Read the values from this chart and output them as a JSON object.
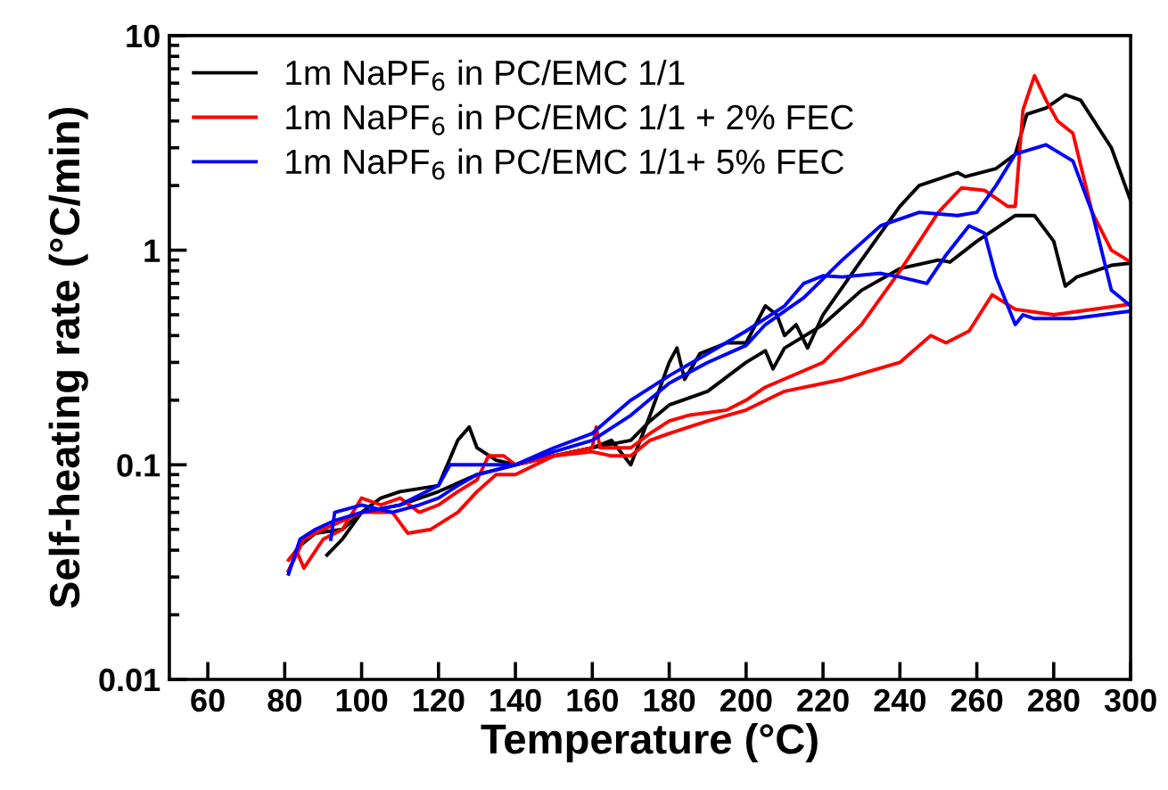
{
  "chart_data": {
    "type": "line",
    "xlabel": "Temperature (°C)",
    "ylabel": "Self-heating rate (°C/min)",
    "xlim": [
      50,
      300
    ],
    "xticks": [
      60,
      80,
      100,
      120,
      140,
      160,
      180,
      200,
      220,
      240,
      260,
      280,
      300
    ],
    "ylim": [
      0.01,
      10
    ],
    "yticks": [
      0.01,
      0.1,
      1,
      10
    ],
    "log": "y",
    "grid": false,
    "legend": "top left",
    "marker": "none",
    "line_style": "solid",
    "series": [
      {
        "name": "1m NaPF$_{6}$ in PC/EMC 1/1",
        "color": "#000000",
        "x": [
          91,
          95,
          100,
          105,
          110,
          120,
          125,
          128,
          130,
          135,
          140,
          150,
          160,
          165,
          170,
          175,
          180,
          182,
          184,
          188,
          195,
          200,
          205,
          208,
          210,
          213,
          216,
          220,
          230,
          240,
          245,
          255,
          257,
          265,
          270,
          273,
          278,
          283,
          287,
          295,
          300
        ],
        "values": [
          0.038,
          0.045,
          0.06,
          0.07,
          0.075,
          0.08,
          0.13,
          0.15,
          0.12,
          0.105,
          0.1,
          0.11,
          0.12,
          0.13,
          0.1,
          0.17,
          0.3,
          0.35,
          0.25,
          0.33,
          0.37,
          0.37,
          0.55,
          0.5,
          0.4,
          0.45,
          0.35,
          0.5,
          0.9,
          1.6,
          2.0,
          2.3,
          2.2,
          2.4,
          2.8,
          4.3,
          4.6,
          5.3,
          5.0,
          3.0,
          1.7
        ]
      },
      {
        "color": "#000000",
        "x": [
          81,
          84,
          88,
          95,
          100,
          110,
          120,
          130,
          140,
          150,
          160,
          170,
          175,
          180,
          190,
          200,
          205,
          207,
          210,
          220,
          230,
          240,
          250,
          253,
          260,
          270,
          275,
          280,
          283,
          286,
          295,
          300
        ],
        "values": [
          0.032,
          0.042,
          0.048,
          0.05,
          0.06,
          0.065,
          0.075,
          0.09,
          0.1,
          0.11,
          0.12,
          0.13,
          0.16,
          0.19,
          0.22,
          0.3,
          0.34,
          0.28,
          0.35,
          0.45,
          0.65,
          0.82,
          0.9,
          0.88,
          1.1,
          1.45,
          1.45,
          1.1,
          0.68,
          0.75,
          0.85,
          0.87
        ]
      },
      {
        "name": "1m NaPF$_{6}$ in PC/EMC 1/1 + 2% FEC",
        "color": "#ff0000",
        "x": [
          81,
          83,
          85,
          90,
          95,
          100,
          105,
          110,
          115,
          120,
          125,
          130,
          133,
          137,
          140,
          150,
          160,
          161,
          162,
          170,
          175,
          180,
          185,
          195,
          200,
          205,
          220,
          230,
          240,
          250,
          256,
          262,
          268,
          270,
          272,
          275,
          278,
          281,
          285,
          290,
          295,
          300
        ],
        "values": [
          0.036,
          0.04,
          0.033,
          0.045,
          0.05,
          0.07,
          0.065,
          0.07,
          0.06,
          0.065,
          0.075,
          0.085,
          0.11,
          0.11,
          0.1,
          0.11,
          0.12,
          0.15,
          0.12,
          0.12,
          0.14,
          0.16,
          0.17,
          0.18,
          0.2,
          0.23,
          0.3,
          0.45,
          0.8,
          1.5,
          1.95,
          1.9,
          1.6,
          1.6,
          4.5,
          6.5,
          5.0,
          4.0,
          3.5,
          1.5,
          1.0,
          0.88
        ]
      },
      {
        "color": "#ff0000",
        "x": [
          81,
          85,
          90,
          100,
          108,
          112,
          118,
          125,
          130,
          135,
          140,
          150,
          160,
          165,
          170,
          175,
          180,
          190,
          200,
          210,
          225,
          240,
          248,
          252,
          258,
          264,
          270,
          280,
          300
        ],
        "values": [
          0.032,
          0.045,
          0.05,
          0.06,
          0.06,
          0.048,
          0.05,
          0.06,
          0.075,
          0.09,
          0.09,
          0.11,
          0.115,
          0.11,
          0.11,
          0.13,
          0.14,
          0.16,
          0.18,
          0.22,
          0.25,
          0.3,
          0.4,
          0.37,
          0.42,
          0.62,
          0.53,
          0.5,
          0.56
        ]
      },
      {
        "name": "1m NaPF$_{6}$ in PC/EMC 1/1+ 5% FEC",
        "color": "#0000ff",
        "x": [
          92,
          93,
          100,
          108,
          115,
          120,
          125,
          130,
          140,
          150,
          160,
          170,
          180,
          190,
          200,
          205,
          215,
          225,
          235,
          245,
          255,
          260,
          265,
          270,
          278,
          285,
          290,
          295,
          300
        ],
        "values": [
          0.045,
          0.06,
          0.065,
          0.06,
          0.065,
          0.07,
          0.08,
          0.09,
          0.1,
          0.115,
          0.13,
          0.17,
          0.24,
          0.3,
          0.36,
          0.45,
          0.6,
          0.9,
          1.3,
          1.5,
          1.45,
          1.5,
          2.0,
          2.8,
          3.1,
          2.6,
          1.5,
          0.65,
          0.55
        ]
      },
      {
        "color": "#0000ff",
        "x": [
          81,
          84,
          88,
          93,
          100,
          110,
          120,
          123,
          130,
          140,
          150,
          160,
          170,
          180,
          190,
          200,
          210,
          215,
          220,
          225,
          235,
          240,
          247,
          252,
          258,
          262,
          265,
          270,
          272,
          275,
          285,
          300
        ],
        "values": [
          0.031,
          0.045,
          0.05,
          0.055,
          0.06,
          0.065,
          0.08,
          0.1,
          0.1,
          0.1,
          0.12,
          0.14,
          0.2,
          0.26,
          0.33,
          0.42,
          0.55,
          0.7,
          0.76,
          0.75,
          0.78,
          0.75,
          0.7,
          0.95,
          1.3,
          1.2,
          0.75,
          0.45,
          0.5,
          0.48,
          0.48,
          0.52
        ]
      }
    ]
  }
}
